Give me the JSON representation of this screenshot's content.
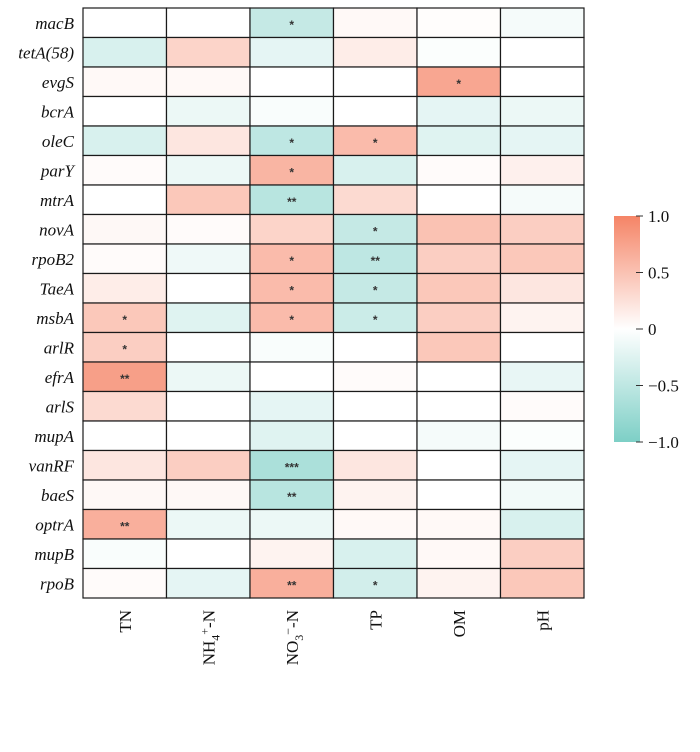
{
  "chart_data": {
    "type": "heatmap",
    "rows": [
      "macB",
      "tetA(58)",
      "evgS",
      "bcrA",
      "oleC",
      "parY",
      "mtrA",
      "novA",
      "rpoB2",
      "TaeA",
      "msbA",
      "arlR",
      "efrA",
      "arlS",
      "mupA",
      "vanRF",
      "baeS",
      "optrA",
      "mupB",
      "rpoB"
    ],
    "columns": [
      "TN",
      "NH4+-N",
      "NO3−-N",
      "TP",
      "OM",
      "pH"
    ],
    "column_labels": [
      {
        "base": "TN",
        "sup": "",
        "sub": "",
        "tail": ""
      },
      {
        "base": "NH",
        "sub": "4",
        "sup": "+",
        "tail": "-N"
      },
      {
        "base": "NO",
        "sub": "3",
        "sup": "−",
        "tail": "-N"
      },
      {
        "base": "TP",
        "sup": "",
        "sub": "",
        "tail": ""
      },
      {
        "base": "OM",
        "sup": "",
        "sub": "",
        "tail": ""
      },
      {
        "base": "pH",
        "sup": "",
        "sub": "",
        "tail": ""
      }
    ],
    "values": [
      [
        0.0,
        0.0,
        -0.45,
        0.05,
        0.02,
        -0.08
      ],
      [
        -0.3,
        0.35,
        -0.2,
        0.15,
        -0.03,
        0.0
      ],
      [
        0.05,
        0.05,
        0.0,
        0.0,
        0.72,
        0.0
      ],
      [
        0.0,
        -0.15,
        -0.05,
        0.0,
        -0.2,
        -0.15
      ],
      [
        -0.3,
        0.2,
        -0.5,
        0.55,
        -0.25,
        -0.2
      ],
      [
        0.03,
        -0.15,
        0.6,
        -0.3,
        0.03,
        0.12
      ],
      [
        0.0,
        0.45,
        -0.55,
        0.3,
        0.0,
        -0.08
      ],
      [
        0.06,
        0.03,
        0.35,
        -0.45,
        0.5,
        0.4
      ],
      [
        0.03,
        -0.12,
        0.55,
        -0.5,
        0.4,
        0.45
      ],
      [
        0.15,
        0.0,
        0.55,
        -0.45,
        0.45,
        0.2
      ],
      [
        0.45,
        -0.25,
        0.55,
        -0.4,
        0.4,
        0.1
      ],
      [
        0.4,
        0.0,
        -0.05,
        0.0,
        0.45,
        0.0
      ],
      [
        0.78,
        -0.15,
        0.0,
        0.03,
        0.0,
        -0.18
      ],
      [
        0.3,
        0.0,
        -0.2,
        0.0,
        0.0,
        0.03
      ],
      [
        0.0,
        0.0,
        -0.25,
        0.0,
        -0.08,
        -0.03
      ],
      [
        0.2,
        0.4,
        -0.65,
        0.2,
        0.0,
        -0.2
      ],
      [
        0.06,
        0.06,
        -0.55,
        0.1,
        0.0,
        -0.1
      ],
      [
        0.65,
        -0.15,
        -0.15,
        0.05,
        0.05,
        -0.3
      ],
      [
        -0.05,
        0.0,
        0.1,
        -0.3,
        0.05,
        0.4
      ],
      [
        0.03,
        -0.2,
        0.65,
        -0.35,
        0.1,
        0.45
      ]
    ],
    "significance": [
      [
        "",
        "",
        "*",
        "",
        "",
        ""
      ],
      [
        "",
        "",
        "",
        "",
        "",
        ""
      ],
      [
        "",
        "",
        "",
        "",
        "*",
        ""
      ],
      [
        "",
        "",
        "",
        "",
        "",
        ""
      ],
      [
        "",
        "",
        "*",
        "*",
        "",
        ""
      ],
      [
        "",
        "",
        "*",
        "",
        "",
        ""
      ],
      [
        "",
        "",
        "**",
        "",
        "",
        ""
      ],
      [
        "",
        "",
        "",
        "*",
        "",
        ""
      ],
      [
        "",
        "",
        "*",
        "**",
        "",
        ""
      ],
      [
        "",
        "",
        "*",
        "*",
        "",
        ""
      ],
      [
        "*",
        "",
        "*",
        "*",
        "",
        ""
      ],
      [
        "*",
        "",
        "",
        "",
        "",
        ""
      ],
      [
        "**",
        "",
        "",
        "",
        "",
        ""
      ],
      [
        "",
        "",
        "",
        "",
        "",
        ""
      ],
      [
        "",
        "",
        "",
        "",
        "",
        ""
      ],
      [
        "",
        "",
        "***",
        "",
        "",
        ""
      ],
      [
        "",
        "",
        "**",
        "",
        "",
        ""
      ],
      [
        "**",
        "",
        "",
        "",
        "",
        ""
      ],
      [
        "",
        "",
        "",
        "",
        "",
        ""
      ],
      [
        "",
        "",
        "**",
        "*",
        "",
        ""
      ]
    ],
    "colorbar": {
      "range": [
        -1.0,
        1.0
      ],
      "ticks": [
        1.0,
        0.5,
        0,
        -0.5,
        -1.0
      ],
      "tick_labels": [
        "1.0",
        "0.5",
        "0",
        "−0.5",
        "−1.0"
      ],
      "positive_color": "#F58466",
      "zero_color": "#FFFFFF",
      "negative_color": "#7DCFC6"
    }
  }
}
